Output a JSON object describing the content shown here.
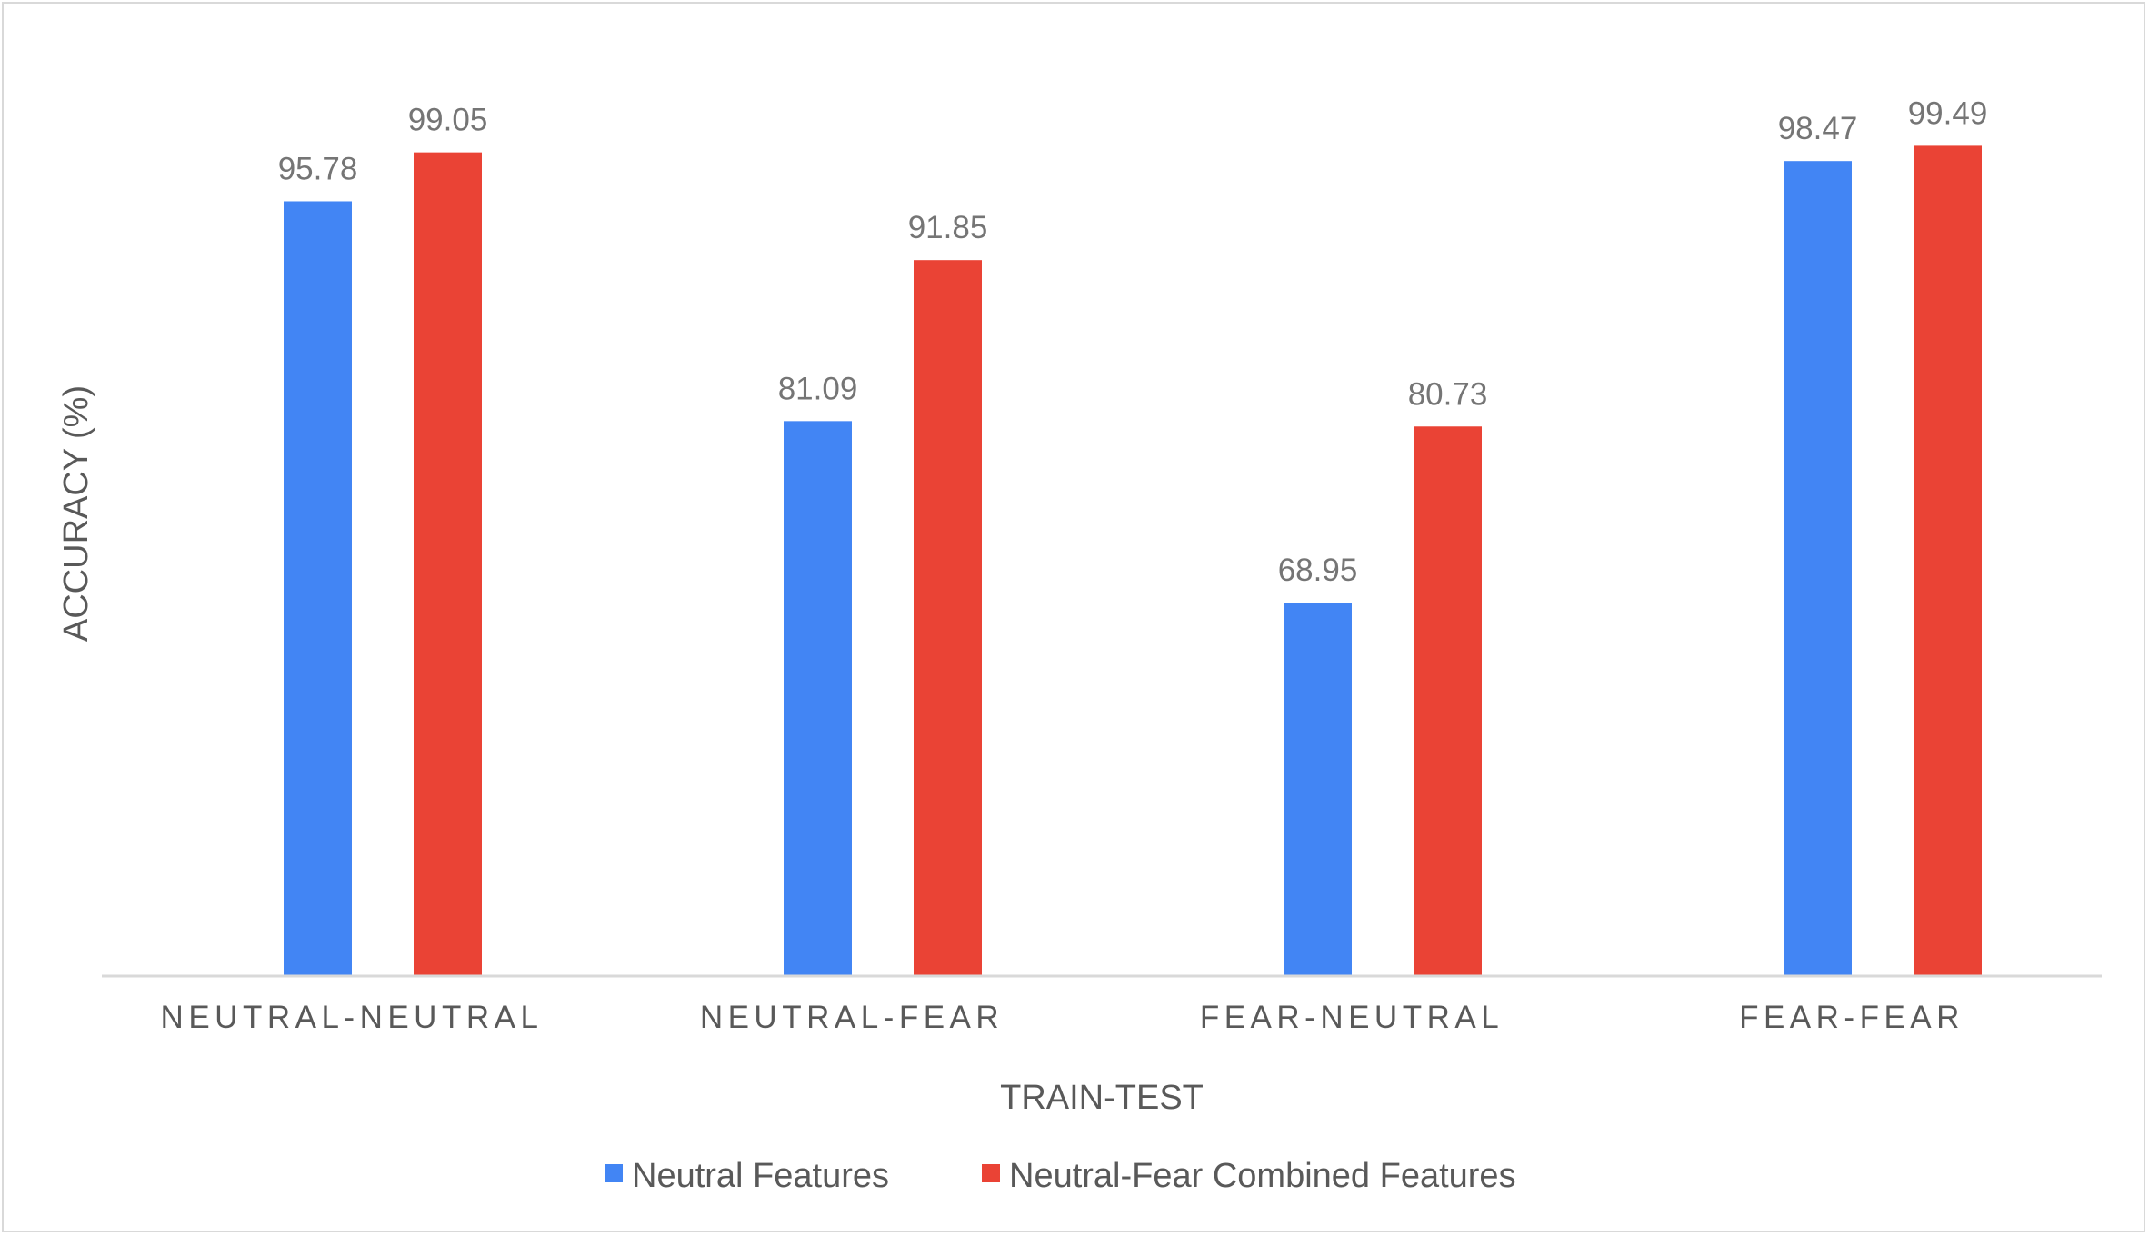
{
  "chart_data": {
    "type": "bar",
    "categories": [
      "NEUTRAL-NEUTRAL",
      "NEUTRAL-FEAR",
      "FEAR-NEUTRAL",
      "FEAR-FEAR"
    ],
    "series": [
      {
        "name": "Neutral Features",
        "color": "#4285f4",
        "values": [
          95.78,
          81.09,
          68.95,
          98.47
        ]
      },
      {
        "name": "Neutral-Fear Combined Features",
        "color": "#ea4335",
        "values": [
          99.05,
          91.85,
          80.73,
          99.49
        ]
      }
    ],
    "title": "",
    "xlabel": "TRAIN-TEST",
    "ylabel": "ACCURACY (%)",
    "ylim": [
      44,
      100
    ],
    "grid": false,
    "legend_position": "bottom",
    "data_labels": true
  }
}
